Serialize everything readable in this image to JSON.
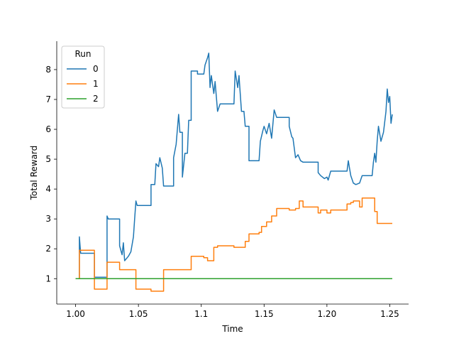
{
  "chart_data": {
    "type": "line",
    "xlabel": "Time",
    "ylabel": "Total Reward",
    "xlim": [
      0.985,
      1.265
    ],
    "ylim": [
      0.15,
      8.95
    ],
    "xticks": [
      1.0,
      1.05,
      1.1,
      1.15,
      1.2,
      1.25
    ],
    "xtick_labels": [
      "1.00",
      "1.05",
      1.1,
      "1.15",
      "1.20",
      "1.25"
    ],
    "yticks": [
      1,
      2,
      3,
      4,
      5,
      6,
      7,
      8
    ],
    "ytick_labels": [
      "1",
      "2",
      "3",
      "4",
      "5",
      "6",
      "7",
      "8"
    ],
    "legend": {
      "title": "Run",
      "position": "top-left"
    },
    "grid": false,
    "series": [
      {
        "name": "0",
        "color": "#1f77b4",
        "points": [
          [
            1.0,
            1.0
          ],
          [
            1.003,
            1.0
          ],
          [
            1.003,
            2.4
          ],
          [
            1.004,
            1.85
          ],
          [
            1.015,
            1.85
          ],
          [
            1.015,
            1.05
          ],
          [
            1.025,
            1.05
          ],
          [
            1.025,
            3.1
          ],
          [
            1.026,
            3.0
          ],
          [
            1.035,
            3.0
          ],
          [
            1.035,
            2.1
          ],
          [
            1.037,
            1.8
          ],
          [
            1.038,
            2.2
          ],
          [
            1.039,
            1.6
          ],
          [
            1.042,
            1.75
          ],
          [
            1.044,
            1.9
          ],
          [
            1.046,
            2.4
          ],
          [
            1.047,
            3.0
          ],
          [
            1.048,
            3.6
          ],
          [
            1.049,
            3.45
          ],
          [
            1.06,
            3.45
          ],
          [
            1.06,
            4.15
          ],
          [
            1.063,
            4.15
          ],
          [
            1.064,
            4.85
          ],
          [
            1.066,
            4.75
          ],
          [
            1.067,
            5.05
          ],
          [
            1.069,
            4.7
          ],
          [
            1.07,
            4.1
          ],
          [
            1.078,
            4.1
          ],
          [
            1.078,
            5.05
          ],
          [
            1.08,
            5.5
          ],
          [
            1.082,
            6.5
          ],
          [
            1.083,
            5.9
          ],
          [
            1.085,
            5.9
          ],
          [
            1.085,
            4.4
          ],
          [
            1.087,
            5.2
          ],
          [
            1.089,
            5.2
          ],
          [
            1.09,
            6.3
          ],
          [
            1.092,
            6.3
          ],
          [
            1.092,
            7.95
          ],
          [
            1.097,
            7.95
          ],
          [
            1.097,
            7.85
          ],
          [
            1.102,
            7.85
          ],
          [
            1.103,
            8.15
          ],
          [
            1.105,
            8.4
          ],
          [
            1.106,
            8.55
          ],
          [
            1.107,
            7.4
          ],
          [
            1.108,
            7.8
          ],
          [
            1.11,
            7.2
          ],
          [
            1.111,
            7.6
          ],
          [
            1.113,
            6.6
          ],
          [
            1.115,
            6.85
          ],
          [
            1.126,
            6.85
          ],
          [
            1.127,
            7.95
          ],
          [
            1.129,
            7.4
          ],
          [
            1.13,
            7.8
          ],
          [
            1.132,
            6.6
          ],
          [
            1.134,
            6.6
          ],
          [
            1.135,
            6.1
          ],
          [
            1.138,
            6.1
          ],
          [
            1.138,
            4.95
          ],
          [
            1.146,
            4.95
          ],
          [
            1.147,
            5.6
          ],
          [
            1.149,
            5.95
          ],
          [
            1.15,
            6.1
          ],
          [
            1.152,
            5.85
          ],
          [
            1.154,
            6.2
          ],
          [
            1.156,
            5.7
          ],
          [
            1.158,
            6.65
          ],
          [
            1.16,
            6.4
          ],
          [
            1.17,
            6.4
          ],
          [
            1.17,
            6.1
          ],
          [
            1.172,
            5.75
          ],
          [
            1.173,
            5.7
          ],
          [
            1.175,
            5.05
          ],
          [
            1.177,
            5.15
          ],
          [
            1.179,
            4.95
          ],
          [
            1.181,
            4.9
          ],
          [
            1.193,
            4.9
          ],
          [
            1.193,
            4.55
          ],
          [
            1.195,
            4.45
          ],
          [
            1.198,
            4.35
          ],
          [
            1.2,
            4.4
          ],
          [
            1.201,
            4.3
          ],
          [
            1.203,
            4.6
          ],
          [
            1.216,
            4.6
          ],
          [
            1.217,
            4.95
          ],
          [
            1.218,
            4.7
          ],
          [
            1.219,
            4.45
          ],
          [
            1.221,
            4.2
          ],
          [
            1.223,
            4.15
          ],
          [
            1.226,
            4.2
          ],
          [
            1.228,
            4.45
          ],
          [
            1.236,
            4.45
          ],
          [
            1.237,
            4.9
          ],
          [
            1.238,
            5.2
          ],
          [
            1.239,
            4.9
          ],
          [
            1.24,
            5.6
          ],
          [
            1.241,
            6.1
          ],
          [
            1.243,
            5.6
          ],
          [
            1.245,
            5.9
          ],
          [
            1.247,
            6.6
          ],
          [
            1.248,
            7.35
          ],
          [
            1.249,
            6.9
          ],
          [
            1.25,
            7.1
          ],
          [
            1.251,
            6.2
          ],
          [
            1.252,
            6.5
          ]
        ]
      },
      {
        "name": "1",
        "color": "#ff7f0e",
        "points": [
          [
            1.0,
            1.0
          ],
          [
            1.003,
            1.0
          ],
          [
            1.003,
            1.95
          ],
          [
            1.015,
            1.95
          ],
          [
            1.015,
            0.65
          ],
          [
            1.025,
            0.65
          ],
          [
            1.025,
            1.55
          ],
          [
            1.035,
            1.55
          ],
          [
            1.035,
            1.3
          ],
          [
            1.048,
            1.3
          ],
          [
            1.048,
            0.65
          ],
          [
            1.06,
            0.65
          ],
          [
            1.06,
            0.58
          ],
          [
            1.07,
            0.58
          ],
          [
            1.07,
            1.3
          ],
          [
            1.092,
            1.3
          ],
          [
            1.092,
            1.75
          ],
          [
            1.102,
            1.75
          ],
          [
            1.102,
            1.7
          ],
          [
            1.105,
            1.7
          ],
          [
            1.105,
            1.6
          ],
          [
            1.11,
            1.6
          ],
          [
            1.11,
            2.05
          ],
          [
            1.113,
            2.05
          ],
          [
            1.113,
            2.1
          ],
          [
            1.126,
            2.1
          ],
          [
            1.126,
            2.05
          ],
          [
            1.135,
            2.05
          ],
          [
            1.135,
            2.25
          ],
          [
            1.138,
            2.25
          ],
          [
            1.138,
            2.5
          ],
          [
            1.146,
            2.5
          ],
          [
            1.146,
            2.55
          ],
          [
            1.148,
            2.55
          ],
          [
            1.148,
            2.75
          ],
          [
            1.152,
            2.75
          ],
          [
            1.152,
            2.9
          ],
          [
            1.156,
            2.9
          ],
          [
            1.156,
            3.1
          ],
          [
            1.16,
            3.1
          ],
          [
            1.16,
            3.35
          ],
          [
            1.17,
            3.35
          ],
          [
            1.17,
            3.3
          ],
          [
            1.175,
            3.3
          ],
          [
            1.175,
            3.35
          ],
          [
            1.178,
            3.35
          ],
          [
            1.178,
            3.6
          ],
          [
            1.181,
            3.6
          ],
          [
            1.181,
            3.4
          ],
          [
            1.193,
            3.4
          ],
          [
            1.193,
            3.2
          ],
          [
            1.195,
            3.2
          ],
          [
            1.195,
            3.3
          ],
          [
            1.2,
            3.3
          ],
          [
            1.2,
            3.2
          ],
          [
            1.203,
            3.2
          ],
          [
            1.203,
            3.3
          ],
          [
            1.216,
            3.3
          ],
          [
            1.216,
            3.5
          ],
          [
            1.219,
            3.5
          ],
          [
            1.219,
            3.55
          ],
          [
            1.221,
            3.55
          ],
          [
            1.221,
            3.6
          ],
          [
            1.226,
            3.6
          ],
          [
            1.226,
            3.4
          ],
          [
            1.228,
            3.4
          ],
          [
            1.228,
            3.7
          ],
          [
            1.238,
            3.7
          ],
          [
            1.238,
            3.25
          ],
          [
            1.24,
            3.25
          ],
          [
            1.24,
            2.85
          ],
          [
            1.252,
            2.85
          ]
        ]
      },
      {
        "name": "2",
        "color": "#2ca02c",
        "points": [
          [
            1.0,
            1.0
          ],
          [
            1.252,
            1.0
          ]
        ]
      }
    ]
  }
}
